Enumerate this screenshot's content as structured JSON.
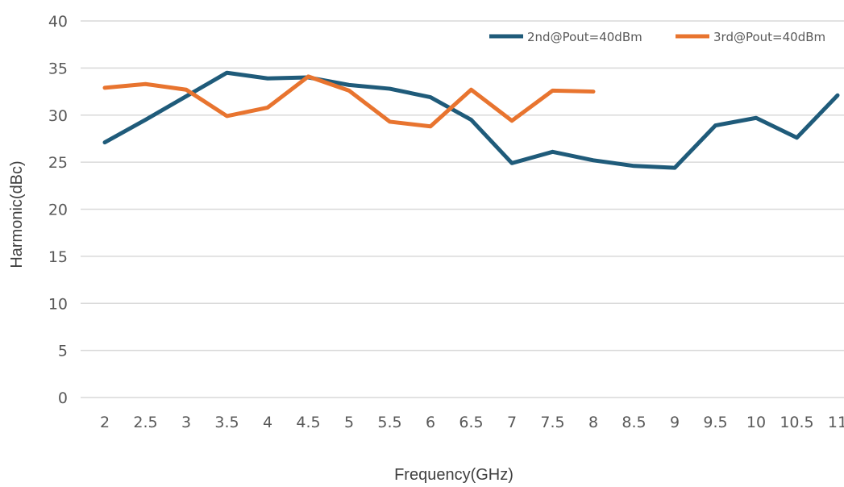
{
  "chart_data": {
    "type": "line",
    "title": "",
    "xlabel": "Frequency(GHz)",
    "ylabel": "Harmonic(dBc)",
    "categories": [
      "2",
      "2.5",
      "3",
      "3.5",
      "4",
      "4.5",
      "5",
      "5.5",
      "6",
      "6.5",
      "7",
      "7.5",
      "8",
      "8.5",
      "9",
      "9.5",
      "10",
      "10.5",
      "11"
    ],
    "ylim": [
      0,
      40
    ],
    "yticks": [
      "0",
      "5",
      "10",
      "15",
      "20",
      "25",
      "30",
      "35",
      "40"
    ],
    "grid": true,
    "legend_position": "top-right",
    "series": [
      {
        "name": "2nd@Pout=40dBm",
        "color": "#1f5b7a",
        "values": [
          27.1,
          29.5,
          32.0,
          34.5,
          33.9,
          34.0,
          33.2,
          32.8,
          31.9,
          29.5,
          24.9,
          26.1,
          25.2,
          24.6,
          24.4,
          28.9,
          29.7,
          27.6,
          32.1
        ]
      },
      {
        "name": "3rd@Pout=40dBm",
        "color": "#e8742f",
        "values": [
          32.9,
          33.3,
          32.7,
          29.9,
          30.8,
          34.1,
          32.6,
          29.3,
          28.8,
          32.7,
          29.4,
          32.6,
          32.5,
          null,
          null,
          null,
          null,
          null,
          null
        ]
      }
    ]
  }
}
